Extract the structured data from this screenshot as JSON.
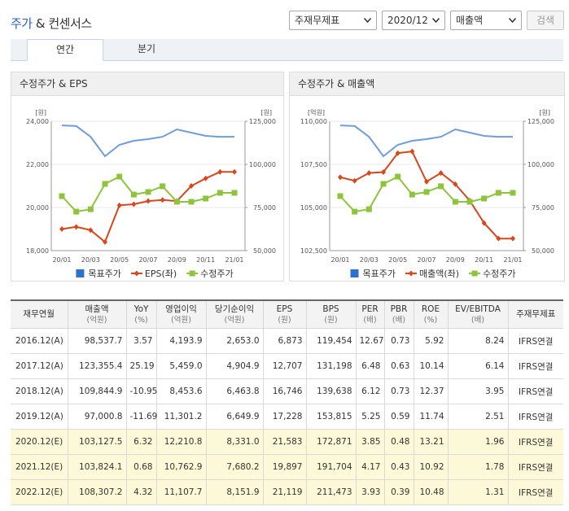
{
  "header": {
    "title_highlight": "주가",
    "title_rest": "& 컨센서스"
  },
  "controls": {
    "statement": "주재무제표",
    "period": "2020/12",
    "metric": "매출액",
    "search": "검색"
  },
  "tabs": [
    "연간",
    "분기"
  ],
  "charts": [
    {
      "type": "line",
      "title": "수정주가 & EPS",
      "y_unit": "[원]",
      "y2_unit": "[원]",
      "categories": [
        "20/01",
        null,
        "20/03",
        null,
        "20/05",
        null,
        "20/07",
        null,
        "20/09",
        null,
        "20/11",
        null,
        "21/01"
      ],
      "ylim": [
        18000,
        24000
      ],
      "yticks": [
        {
          "value": 18000,
          "label": "18,000"
        },
        {
          "value": 20000,
          "label": "20,000"
        },
        {
          "value": 22000,
          "label": "22,000"
        },
        {
          "value": 24000,
          "label": "24,000"
        }
      ],
      "y2lim": [
        50000,
        125000
      ],
      "y2ticks": [
        {
          "value": 50000,
          "label": "50,000"
        },
        {
          "value": 75000,
          "label": "75,000"
        },
        {
          "value": 100000,
          "label": "100,000"
        },
        {
          "value": 125000,
          "label": "125,000"
        }
      ],
      "grid": true,
      "series": [
        {
          "name": "목표주가",
          "color": "#6f9be0",
          "axis": "y2",
          "marker": "none",
          "values": [
            122600,
            122200,
            116000,
            104700,
            111300,
            113700,
            114600,
            116000,
            120300,
            118400,
            116500,
            116000,
            116000
          ]
        },
        {
          "name": "EPS(좌)",
          "color": "#d8461a",
          "axis": "y",
          "marker": "diamond",
          "values": [
            19000,
            19100,
            18950,
            18400,
            20100,
            20150,
            20300,
            20350,
            20300,
            21000,
            21350,
            21650,
            21650
          ]
        },
        {
          "name": "수정주가",
          "color": "#8cc43c",
          "axis": "y2",
          "marker": "square",
          "values": [
            81600,
            72600,
            74000,
            88700,
            92900,
            82500,
            84000,
            87300,
            78300,
            78300,
            80200,
            83500,
            83500
          ]
        }
      ]
    },
    {
      "type": "line",
      "title": "수정주가 & 매출액",
      "y_unit": "[억원]",
      "y2_unit": "[원]",
      "categories": [
        "20/01",
        null,
        "20/03",
        null,
        "20/05",
        null,
        "20/07",
        null,
        "20/09",
        null,
        "20/11",
        null,
        "21/01"
      ],
      "ylim": [
        102500,
        110000
      ],
      "yticks": [
        {
          "value": 102500,
          "label": "102,500"
        },
        {
          "value": 105000,
          "label": "105,000"
        },
        {
          "value": 107500,
          "label": "107,500"
        },
        {
          "value": 110000,
          "label": "110,000"
        }
      ],
      "y2lim": [
        50000,
        125000
      ],
      "y2ticks": [
        {
          "value": 50000,
          "label": "50,000"
        },
        {
          "value": 75000,
          "label": "75,000"
        },
        {
          "value": 100000,
          "label": "100,000"
        },
        {
          "value": 125000,
          "label": "125,000"
        }
      ],
      "grid": true,
      "series": [
        {
          "name": "목표주가",
          "color": "#6f9be0",
          "axis": "y2",
          "marker": "none",
          "values": [
            122600,
            122200,
            116000,
            104700,
            111300,
            113700,
            114600,
            116000,
            120300,
            118400,
            116500,
            116000,
            116000
          ]
        },
        {
          "name": "매출액(좌)",
          "color": "#d8461a",
          "axis": "y",
          "marker": "diamond",
          "values": [
            106750,
            106550,
            107000,
            107050,
            108150,
            108250,
            106500,
            107000,
            106350,
            105400,
            104100,
            103200,
            103200
          ]
        },
        {
          "name": "수정주가",
          "color": "#8cc43c",
          "axis": "y2",
          "marker": "square",
          "values": [
            81600,
            72600,
            74000,
            88700,
            92900,
            82500,
            84000,
            87300,
            78300,
            78300,
            80200,
            83500,
            83500
          ]
        }
      ]
    }
  ],
  "table": {
    "columns": [
      {
        "name": "재무연월"
      },
      {
        "name": "매출액",
        "unit": "(억원)"
      },
      {
        "name": "YoY",
        "unit": "(%)"
      },
      {
        "name": "영업이익",
        "unit": "(억원)"
      },
      {
        "name": "당기순이익",
        "unit": "(억원)"
      },
      {
        "name": "EPS",
        "unit": "(원)"
      },
      {
        "name": "BPS",
        "unit": "(원)"
      },
      {
        "name": "PER",
        "unit": "(배)"
      },
      {
        "name": "PBR",
        "unit": "(배)"
      },
      {
        "name": "ROE",
        "unit": "(%)"
      },
      {
        "name": "EV/EBITDA",
        "unit": "(배)"
      },
      {
        "name": "주재무제표"
      }
    ],
    "rows": [
      [
        "2016.12(A)",
        "98,537.7",
        "3.57",
        "4,193.9",
        "2,653.0",
        "6,873",
        "119,454",
        "12.67",
        "0.73",
        "5.92",
        "8.24",
        "IFRS연결"
      ],
      [
        "2017.12(A)",
        "123,355.4",
        "25.19",
        "5,459.0",
        "4,904.9",
        "12,707",
        "131,198",
        "6.48",
        "0.63",
        "10.14",
        "6.14",
        "IFRS연결"
      ],
      [
        "2018.12(A)",
        "109,844.9",
        "-10.95",
        "8,453.6",
        "6,463.8",
        "16,746",
        "139,638",
        "6.12",
        "0.73",
        "12.37",
        "3.95",
        "IFRS연결"
      ],
      [
        "2019.12(A)",
        "97,000.8",
        "-11.69",
        "11,301.2",
        "6,649.9",
        "17,228",
        "153,815",
        "5.25",
        "0.59",
        "11.74",
        "2.51",
        "IFRS연결"
      ],
      [
        "2020.12(E)",
        "103,127.5",
        "6.32",
        "12,210.8",
        "8,331.0",
        "21,583",
        "172,871",
        "3.85",
        "0.48",
        "13.21",
        "1.96",
        "IFRS연결"
      ],
      [
        "2021.12(E)",
        "103,824.1",
        "0.68",
        "10,762.9",
        "7,680.2",
        "19,897",
        "191,704",
        "4.17",
        "0.43",
        "10.92",
        "1.78",
        "IFRS연결"
      ],
      [
        "2022.12(E)",
        "108,307.2",
        "4.32",
        "11,107.7",
        "8,151.9",
        "21,119",
        "211,473",
        "3.93",
        "0.39",
        "10.48",
        "1.31",
        "IFRS연결"
      ]
    ]
  }
}
